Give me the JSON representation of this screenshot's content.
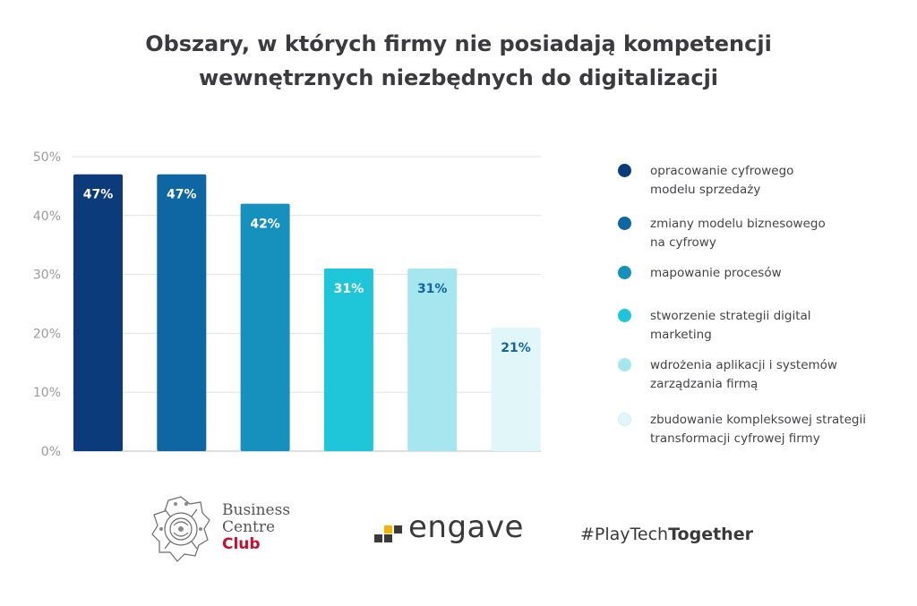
{
  "title": {
    "line1": "Obszary, w których firmy nie posiadają kompetencji",
    "line2": "wewnętrznych niezbędnych do digitalizacji"
  },
  "chart_data": {
    "type": "bar",
    "categories": [
      "opracowanie cyfrowego modelu sprzedaży",
      "zmiany modelu biznesowego na cyfrowy",
      "mapowanie procesów",
      "stworzenie strategii digital marketing",
      "wdrożenia aplikacji i systemów zarządzania firmą",
      "zbudowanie kompleksowej strategii transformacji cyfrowej firmy"
    ],
    "values": [
      47,
      47,
      42,
      31,
      31,
      21
    ],
    "value_labels": [
      "47%",
      "47%",
      "42%",
      "31%",
      "31%",
      "21%"
    ],
    "colors": [
      "#0b3b7a",
      "#0e66a2",
      "#1690bd",
      "#1fc5d8",
      "#a6e6ee",
      "#e1f6f9"
    ],
    "label_colors": [
      "#ffffff",
      "#ffffff",
      "#ffffff",
      "#ffffff",
      "#0e66a2",
      "#0e66a2"
    ],
    "ylim": [
      0,
      50
    ],
    "yticks": [
      0,
      10,
      20,
      30,
      40,
      50
    ],
    "ytick_labels": [
      "0%",
      "10%",
      "20%",
      "30%",
      "40%",
      "50%"
    ],
    "grid": true,
    "legend_position": "right"
  },
  "legend": {
    "items": [
      {
        "label": "opracowanie cyfrowego\nmodelu sprzedaży",
        "color": "#0b3b7a"
      },
      {
        "label": "zmiany modelu biznesowego\nna cyfrowy",
        "color": "#0e66a2"
      },
      {
        "label": "mapowanie procesów",
        "color": "#1690bd"
      },
      {
        "label": "stworzenie strategii digital\nmarketing",
        "color": "#1fc5d8"
      },
      {
        "label": "wdrożenia aplikacji i systemów\nzarządzania firmą",
        "color": "#a6e6ee"
      },
      {
        "label": "zbudowanie kompleksowej strategii\ntransformacji cyfrowej firmy",
        "color": "#e1f6f9"
      }
    ]
  },
  "footer": {
    "bcc": {
      "line1": "Business",
      "line2": "Centre",
      "line3": "Club",
      "icon": "bcc-seal-logo"
    },
    "engave": {
      "word": "engave",
      "icon": "engave-squares-logo"
    },
    "hashtag": {
      "prefix": "#PlayTech",
      "bold": "Together"
    }
  }
}
